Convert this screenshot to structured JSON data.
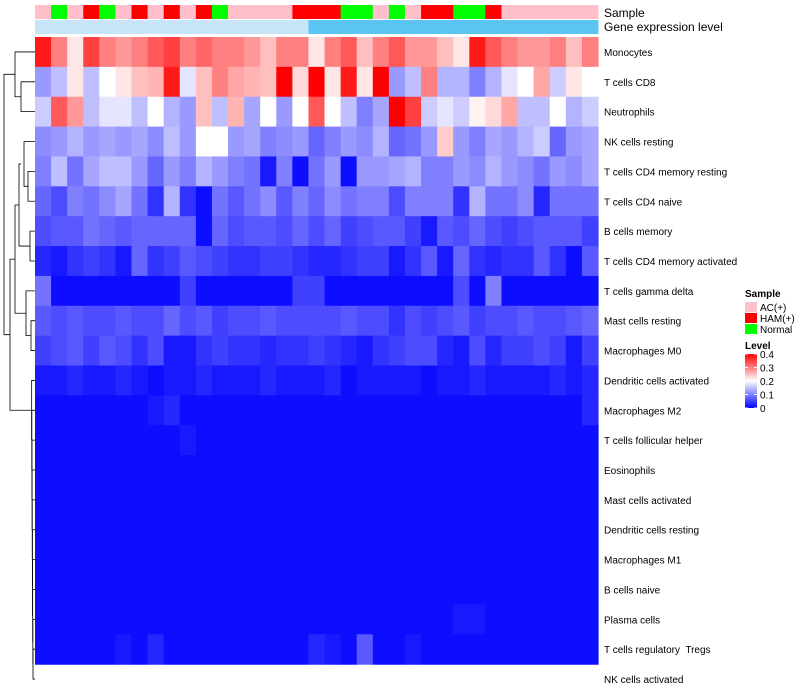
{
  "chart_data": {
    "type": "heatmap",
    "title": "",
    "annotation_tracks": [
      {
        "name": "Sample",
        "values": [
          "AC(+)",
          "Normal",
          "AC(+)",
          "HAM(+)",
          "Normal",
          "AC(+)",
          "HAM(+)",
          "AC(+)",
          "HAM(+)",
          "AC(+)",
          "HAM(+)",
          "Normal",
          "AC(+)",
          "AC(+)",
          "AC(+)",
          "AC(+)",
          "HAM(+)",
          "HAM(+)",
          "HAM(+)",
          "Normal",
          "Normal",
          "AC(+)",
          "Normal",
          "AC(+)",
          "HAM(+)",
          "HAM(+)",
          "Normal",
          "Normal",
          "HAM(+)",
          "AC(+)",
          "AC(+)",
          "AC(+)",
          "AC(+)",
          "AC(+)",
          "AC(+)"
        ]
      },
      {
        "name": "Gene expression level",
        "values": [
          "low",
          "low",
          "low",
          "low",
          "low",
          "low",
          "low",
          "low",
          "low",
          "low",
          "low",
          "low",
          "low",
          "low",
          "low",
          "low",
          "low",
          "high",
          "high",
          "high",
          "high",
          "high",
          "high",
          "high",
          "high",
          "high",
          "high",
          "high",
          "high",
          "high",
          "high",
          "high",
          "high",
          "high",
          "high"
        ]
      }
    ],
    "rows": [
      "Monocytes",
      "T cells CD8",
      "Neutrophils",
      "NK cells resting",
      "T cells CD4 memory resting",
      "T cells CD4 naive",
      "B cells memory",
      "T cells CD4 memory activated",
      "T cells gamma delta",
      "Mast cells resting",
      "Macrophages M0",
      "Dendritic cells activated",
      "Macrophages M2",
      "T cells follicular helper",
      "Eosinophils",
      "Mast cells activated",
      "Dendritic cells resting",
      "Macrophages M1",
      "B cells naive",
      "Plasma cells",
      "T cells regulatory  Tregs",
      "NK cells activated"
    ],
    "values": [
      [
        0.38,
        0.3,
        0.22,
        0.35,
        0.3,
        0.28,
        0.3,
        0.33,
        0.35,
        0.3,
        0.32,
        0.3,
        0.3,
        0.28,
        0.25,
        0.3,
        0.3,
        0.22,
        0.3,
        0.33,
        0.25,
        0.3,
        0.33,
        0.28,
        0.28,
        0.25,
        0.22,
        0.38,
        0.33,
        0.3,
        0.28,
        0.28,
        0.3,
        0.25,
        0.3
      ],
      [
        0.12,
        0.15,
        0.22,
        0.15,
        0.2,
        0.22,
        0.25,
        0.26,
        0.38,
        0.18,
        0.25,
        0.3,
        0.27,
        0.26,
        0.25,
        0.4,
        0.23,
        0.4,
        0.22,
        0.38,
        0.22,
        0.4,
        0.12,
        0.15,
        0.3,
        0.14,
        0.14,
        0.1,
        0.14,
        0.18,
        0.2,
        0.27,
        0.16,
        0.22,
        0.2
      ],
      [
        0.16,
        0.33,
        0.28,
        0.15,
        0.18,
        0.18,
        0.15,
        0.2,
        0.14,
        0.12,
        0.25,
        0.15,
        0.26,
        0.13,
        0.2,
        0.12,
        0.2,
        0.33,
        0.2,
        0.15,
        0.1,
        0.13,
        0.4,
        0.35,
        0.16,
        0.18,
        0.16,
        0.21,
        0.23,
        0.27,
        0.15,
        0.15,
        0.2,
        0.14,
        0.16
      ],
      [
        0.11,
        0.12,
        0.14,
        0.12,
        0.13,
        0.12,
        0.13,
        0.11,
        0.15,
        0.12,
        0.2,
        0.2,
        0.12,
        0.13,
        0.1,
        0.11,
        0.12,
        0.08,
        0.1,
        0.12,
        0.11,
        0.14,
        0.08,
        0.09,
        0.12,
        0.24,
        0.12,
        0.1,
        0.13,
        0.12,
        0.14,
        0.16,
        0.08,
        0.12,
        0.13
      ],
      [
        0.1,
        0.15,
        0.09,
        0.13,
        0.15,
        0.15,
        0.12,
        0.08,
        0.12,
        0.1,
        0.14,
        0.12,
        0.1,
        0.09,
        0.02,
        0.1,
        0.01,
        0.09,
        0.12,
        0.01,
        0.12,
        0.12,
        0.13,
        0.14,
        0.1,
        0.1,
        0.12,
        0.11,
        0.14,
        0.12,
        0.11,
        0.09,
        0.12,
        0.11,
        0.13
      ],
      [
        0.08,
        0.06,
        0.1,
        0.09,
        0.11,
        0.13,
        0.09,
        0.04,
        0.14,
        0.04,
        0.01,
        0.09,
        0.07,
        0.09,
        0.11,
        0.07,
        0.1,
        0.08,
        0.11,
        0.09,
        0.1,
        0.1,
        0.06,
        0.1,
        0.1,
        0.1,
        0.04,
        0.14,
        0.09,
        0.09,
        0.11,
        0.03,
        0.09,
        0.09,
        0.09
      ],
      [
        0.06,
        0.07,
        0.07,
        0.09,
        0.08,
        0.07,
        0.08,
        0.08,
        0.08,
        0.08,
        0.01,
        0.08,
        0.06,
        0.07,
        0.07,
        0.06,
        0.08,
        0.06,
        0.08,
        0.05,
        0.06,
        0.07,
        0.07,
        0.05,
        0.02,
        0.07,
        0.06,
        0.08,
        0.06,
        0.05,
        0.06,
        0.07,
        0.07,
        0.07,
        0.05
      ],
      [
        0.03,
        0.02,
        0.04,
        0.05,
        0.04,
        0.02,
        0.08,
        0.04,
        0.05,
        0.07,
        0.06,
        0.05,
        0.04,
        0.04,
        0.05,
        0.05,
        0.04,
        0.03,
        0.03,
        0.04,
        0.05,
        0.05,
        0.02,
        0.04,
        0.07,
        0.02,
        0.08,
        0.04,
        0.03,
        0.04,
        0.04,
        0.07,
        0.04,
        0.01,
        0.07
      ],
      [
        0.09,
        0.01,
        0.01,
        0.01,
        0.01,
        0.01,
        0.01,
        0.01,
        0.01,
        0.05,
        0.01,
        0.01,
        0.01,
        0.01,
        0.01,
        0.01,
        0.05,
        0.05,
        0.01,
        0.01,
        0.01,
        0.01,
        0.01,
        0.01,
        0.01,
        0.01,
        0.06,
        0.01,
        0.1,
        0.01,
        0.01,
        0.01,
        0.01,
        0.01,
        0.01
      ],
      [
        0.07,
        0.06,
        0.07,
        0.06,
        0.06,
        0.07,
        0.06,
        0.06,
        0.08,
        0.06,
        0.07,
        0.05,
        0.06,
        0.06,
        0.07,
        0.06,
        0.06,
        0.06,
        0.06,
        0.07,
        0.06,
        0.06,
        0.04,
        0.06,
        0.05,
        0.06,
        0.07,
        0.05,
        0.06,
        0.06,
        0.07,
        0.06,
        0.06,
        0.07,
        0.08
      ],
      [
        0.05,
        0.06,
        0.07,
        0.05,
        0.07,
        0.06,
        0.04,
        0.06,
        0.02,
        0.02,
        0.04,
        0.05,
        0.04,
        0.04,
        0.03,
        0.04,
        0.04,
        0.05,
        0.04,
        0.03,
        0.02,
        0.04,
        0.05,
        0.06,
        0.06,
        0.03,
        0.02,
        0.06,
        0.03,
        0.05,
        0.05,
        0.06,
        0.05,
        0.02,
        0.05
      ],
      [
        0.02,
        0.02,
        0.03,
        0.02,
        0.02,
        0.03,
        0.02,
        0.01,
        0.02,
        0.02,
        0.03,
        0.02,
        0.02,
        0.02,
        0.03,
        0.02,
        0.02,
        0.02,
        0.03,
        0.01,
        0.02,
        0.02,
        0.02,
        0.02,
        0.01,
        0.02,
        0.02,
        0.03,
        0.02,
        0.02,
        0.02,
        0.02,
        0.03,
        0.02,
        0.03
      ],
      [
        0.01,
        0.01,
        0.01,
        0.01,
        0.01,
        0.01,
        0.01,
        0.02,
        0.03,
        0.01,
        0.01,
        0.01,
        0.01,
        0.01,
        0.01,
        0.01,
        0.01,
        0.01,
        0.01,
        0.01,
        0.01,
        0.01,
        0.01,
        0.01,
        0.01,
        0.01,
        0.01,
        0.01,
        0.01,
        0.01,
        0.01,
        0.01,
        0.01,
        0.01,
        0.03
      ],
      [
        0.01,
        0.01,
        0.01,
        0.01,
        0.01,
        0.01,
        0.01,
        0.01,
        0.01,
        0.02,
        0.01,
        0.01,
        0.01,
        0.01,
        0.01,
        0.01,
        0.01,
        0.01,
        0.01,
        0.01,
        0.01,
        0.01,
        0.01,
        0.01,
        0.01,
        0.01,
        0.01,
        0.01,
        0.01,
        0.01,
        0.01,
        0.01,
        0.01,
        0.01,
        0.01
      ],
      [
        0.01,
        0.01,
        0.01,
        0.01,
        0.01,
        0.01,
        0.01,
        0.01,
        0.01,
        0.01,
        0.01,
        0.01,
        0.01,
        0.01,
        0.01,
        0.01,
        0.01,
        0.01,
        0.01,
        0.01,
        0.01,
        0.01,
        0.01,
        0.01,
        0.01,
        0.01,
        0.01,
        0.01,
        0.01,
        0.01,
        0.01,
        0.01,
        0.01,
        0.01,
        0.01
      ],
      [
        0.01,
        0.01,
        0.01,
        0.01,
        0.01,
        0.01,
        0.01,
        0.01,
        0.01,
        0.01,
        0.01,
        0.01,
        0.01,
        0.01,
        0.01,
        0.01,
        0.01,
        0.01,
        0.01,
        0.01,
        0.01,
        0.01,
        0.01,
        0.01,
        0.01,
        0.01,
        0.01,
        0.01,
        0.01,
        0.01,
        0.01,
        0.01,
        0.01,
        0.01,
        0.01
      ],
      [
        0.01,
        0.01,
        0.01,
        0.01,
        0.01,
        0.01,
        0.01,
        0.01,
        0.01,
        0.01,
        0.01,
        0.01,
        0.01,
        0.01,
        0.01,
        0.01,
        0.01,
        0.01,
        0.01,
        0.01,
        0.01,
        0.01,
        0.01,
        0.01,
        0.01,
        0.01,
        0.01,
        0.01,
        0.01,
        0.01,
        0.01,
        0.01,
        0.01,
        0.01,
        0.01
      ],
      [
        0.01,
        0.01,
        0.01,
        0.01,
        0.01,
        0.01,
        0.01,
        0.01,
        0.01,
        0.01,
        0.01,
        0.01,
        0.01,
        0.01,
        0.01,
        0.01,
        0.01,
        0.01,
        0.01,
        0.01,
        0.01,
        0.01,
        0.01,
        0.01,
        0.01,
        0.01,
        0.01,
        0.01,
        0.01,
        0.01,
        0.01,
        0.01,
        0.01,
        0.01,
        0.01
      ],
      [
        0.01,
        0.01,
        0.01,
        0.01,
        0.01,
        0.01,
        0.01,
        0.01,
        0.01,
        0.01,
        0.01,
        0.01,
        0.01,
        0.01,
        0.01,
        0.01,
        0.01,
        0.01,
        0.01,
        0.01,
        0.01,
        0.01,
        0.01,
        0.01,
        0.01,
        0.01,
        0.01,
        0.01,
        0.01,
        0.01,
        0.01,
        0.01,
        0.01,
        0.01,
        0.01
      ],
      [
        0.01,
        0.01,
        0.01,
        0.01,
        0.01,
        0.01,
        0.01,
        0.01,
        0.01,
        0.01,
        0.01,
        0.01,
        0.01,
        0.01,
        0.01,
        0.01,
        0.01,
        0.01,
        0.01,
        0.01,
        0.01,
        0.01,
        0.01,
        0.01,
        0.01,
        0.01,
        0.02,
        0.02,
        0.01,
        0.01,
        0.01,
        0.01,
        0.01,
        0.01,
        0.01
      ],
      [
        0.01,
        0.01,
        0.01,
        0.01,
        0.01,
        0.02,
        0.01,
        0.03,
        0.01,
        0.01,
        0.01,
        0.01,
        0.01,
        0.01,
        0.01,
        0.01,
        0.01,
        0.03,
        0.02,
        0.01,
        0.07,
        0.01,
        0.01,
        0.02,
        0.01,
        0.01,
        0.01,
        0.01,
        0.01,
        0.01,
        0.01,
        0.01,
        0.01,
        0.01,
        0.01
      ]
    ],
    "value_range": [
      0,
      0.4
    ],
    "legend": {
      "sample_title": "Sample",
      "sample_entries": [
        {
          "label": "AC(+)",
          "color": "#ffc0cb"
        },
        {
          "label": "HAM(+)",
          "color": "#ff0000"
        },
        {
          "label": "Normal",
          "color": "#00ff00"
        }
      ],
      "level_title": "Level",
      "level_ticks": [
        "0.4",
        "0.3",
        "0.2",
        "0.1",
        "0"
      ],
      "expression_colors": {
        "low": "#c6e6f7",
        "high": "#5bc4f0"
      }
    },
    "colors": {
      "low": "#0000ff",
      "mid": "#ffffff",
      "high": "#ff0000"
    },
    "legend_placement": "right"
  }
}
